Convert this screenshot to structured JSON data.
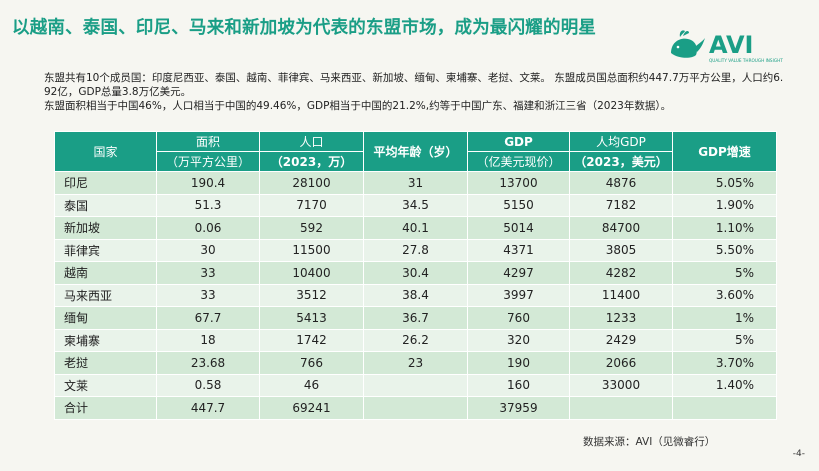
{
  "title": "以越南、泰国、印尼、马来和新加坡为代表的东盟市场，成为最闪耀的明星",
  "logo": {
    "text": "AVI",
    "tagline": "QUALITY VALUE THROUGH INSIGHT",
    "color": "#1a9e86"
  },
  "intro": {
    "line1": "东盟共有10个成员国：印度尼西亚、泰国、越南、菲律宾、马来西亚、新加坡、缅甸、柬埔寨、老挝、文莱。 东盟成员国总面积约447.7万平方公里，人口约6. 92亿，GDP总量3.8万亿美元。",
    "line2": "东盟面积相当于中国46%，人口相当于中国的49.46%，GDP相当于中国的21.2%,约等于中国广东、福建和浙江三省（2023年数据）。"
  },
  "table": {
    "headers": {
      "country": "国家",
      "area": "面积",
      "area_unit": "（万平方公里）",
      "population": "人口",
      "population_unit": "（2023，万）",
      "age": "平均年龄（岁）",
      "gdp": "GDP",
      "gdp_unit": "（亿美元现价）",
      "gdp_per_capita": "人均GDP",
      "gdp_per_capita_unit": "（2023，美元）",
      "gdp_growth": "GDP增速"
    },
    "rows": [
      {
        "country": "印尼",
        "area": "190.4",
        "population": "28100",
        "age": "31",
        "gdp": "13700",
        "gdp_per_capita": "4876",
        "growth": "5.05%"
      },
      {
        "country": "泰国",
        "area": "51.3",
        "population": "7170",
        "age": "34.5",
        "gdp": "5150",
        "gdp_per_capita": "7182",
        "growth": "1.90%"
      },
      {
        "country": "新加坡",
        "area": "0.06",
        "population": "592",
        "age": "40.1",
        "gdp": "5014",
        "gdp_per_capita": "84700",
        "growth": "1.10%"
      },
      {
        "country": "菲律宾",
        "area": "30",
        "population": "11500",
        "age": "27.8",
        "gdp": "4371",
        "gdp_per_capita": "3805",
        "growth": "5.50%"
      },
      {
        "country": "越南",
        "area": "33",
        "population": "10400",
        "age": "30.4",
        "gdp": "4297",
        "gdp_per_capita": "4282",
        "growth": "5%"
      },
      {
        "country": "马来西亚",
        "area": "33",
        "population": "3512",
        "age": "38.4",
        "gdp": "3997",
        "gdp_per_capita": "11400",
        "growth": "3.60%"
      },
      {
        "country": "缅甸",
        "area": "67.7",
        "population": "5413",
        "age": "36.7",
        "gdp": "760",
        "gdp_per_capita": "1233",
        "growth": "1%"
      },
      {
        "country": "柬埔寨",
        "area": "18",
        "population": "1742",
        "age": "26.2",
        "gdp": "320",
        "gdp_per_capita": "2429",
        "growth": "5%"
      },
      {
        "country": "老挝",
        "area": "23.68",
        "population": "766",
        "age": "23",
        "gdp": "190",
        "gdp_per_capita": "2066",
        "growth": "3.70%"
      },
      {
        "country": "文莱",
        "area": "0.58",
        "population": "46",
        "age": "",
        "gdp": "160",
        "gdp_per_capita": "33000",
        "growth": "1.40%"
      },
      {
        "country": "合计",
        "area": "447.7",
        "population": "69241",
        "age": "",
        "gdp": "37959",
        "gdp_per_capita": "",
        "growth": ""
      }
    ]
  },
  "source": "数据来源：AVI（见微睿行）",
  "page_number": "-4-"
}
